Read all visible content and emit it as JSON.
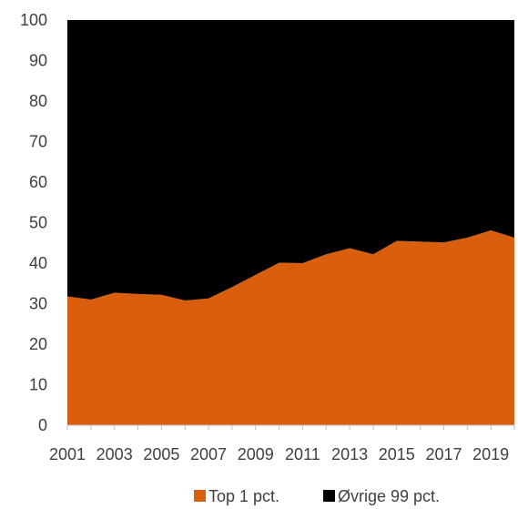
{
  "chart_data": {
    "type": "area",
    "stacked": true,
    "x": [
      2001,
      2002,
      2003,
      2004,
      2005,
      2006,
      2007,
      2008,
      2009,
      2010,
      2011,
      2012,
      2013,
      2014,
      2015,
      2016,
      2017,
      2018,
      2019,
      2020
    ],
    "x_tick_labels": [
      "2001",
      "2003",
      "2005",
      "2007",
      "2009",
      "2011",
      "2013",
      "2015",
      "2017",
      "2019"
    ],
    "y_tick_labels": [
      "0",
      "10",
      "20",
      "30",
      "40",
      "50",
      "60",
      "70",
      "80",
      "90",
      "100"
    ],
    "ylim": [
      0,
      100
    ],
    "title": "",
    "xlabel": "",
    "ylabel": "",
    "grid": false,
    "legend_position": "bottom",
    "series": [
      {
        "name": "Top 1 pct.",
        "color": "#D95F0E",
        "values": [
          31.8,
          31.0,
          32.7,
          32.4,
          32.2,
          30.8,
          31.3,
          34.1,
          37.1,
          40.1,
          40.0,
          42.2,
          43.7,
          42.2,
          45.5,
          45.3,
          45.1,
          46.3,
          48.1,
          46.3
        ]
      },
      {
        "name": "Øvrige 99 pct.",
        "color": "#000000",
        "values": [
          68.2,
          69.0,
          67.3,
          67.6,
          67.8,
          69.2,
          68.7,
          65.9,
          62.9,
          59.9,
          60.0,
          57.8,
          56.3,
          57.8,
          54.5,
          54.7,
          54.9,
          53.7,
          51.9,
          53.7
        ]
      }
    ]
  }
}
